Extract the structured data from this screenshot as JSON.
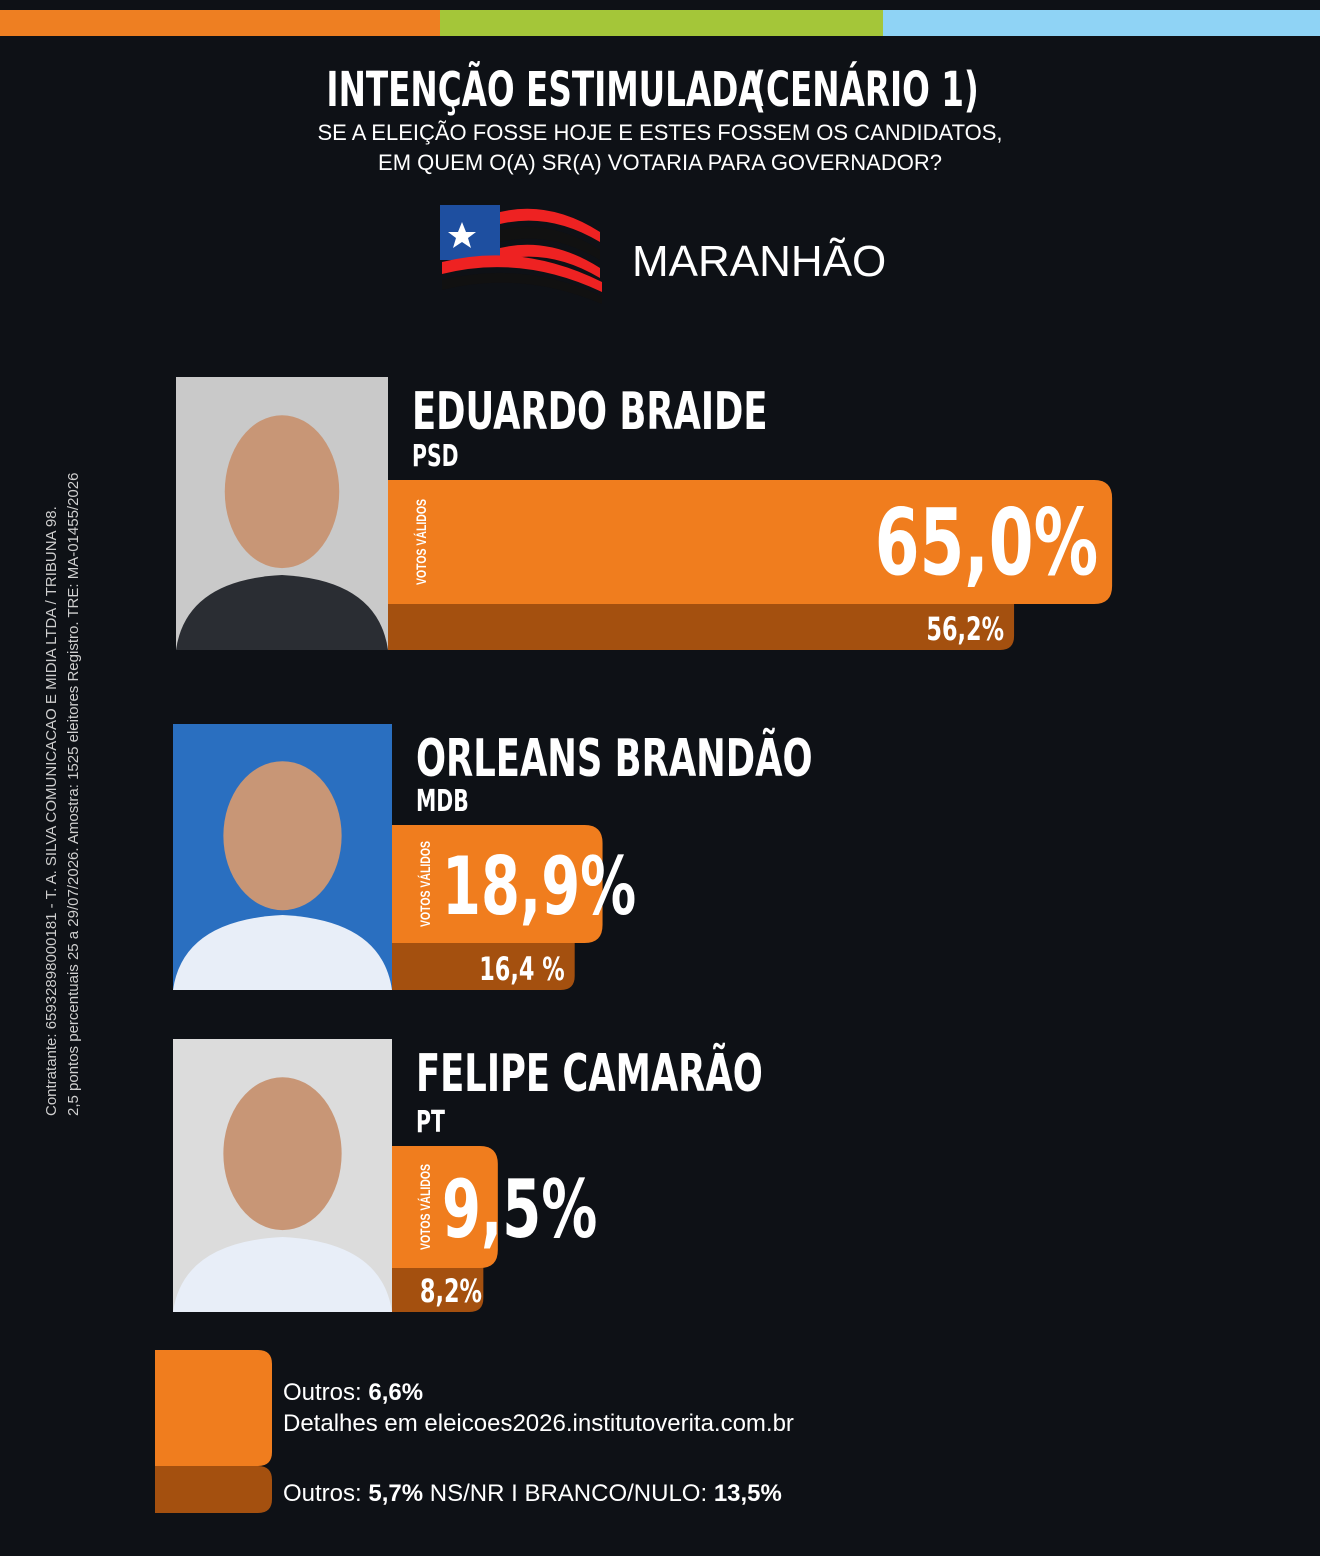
{
  "header": {
    "title": "INTENÇÃO ESTIMULADA",
    "scenario": "(CENÁRIO 1)",
    "question": [
      "SE A ELEIÇÃO FOSSE HOJE E ESTES FOSSEM OS CANDIDATOS,",
      "EM QUEM O(A) SR(A) VOTARIA PARA GOVERNADOR?"
    ],
    "state": "MARANHÃO"
  },
  "side_note": [
    "Contratante: 65932898000181 - T. A. SILVA COMUNICACAO E MIDIA LTDA / TRIBUNA 98.",
    "2,5 pontos percentuais 25 a 29/07/2026. Amostra: 1525 eleitores Registro. TRE: MA-01455/2026"
  ],
  "chart_data": {
    "type": "bar",
    "orientation": "horizontal",
    "categories": [
      "EDUARDO BRAIDE",
      "ORLEANS BRANDÃO",
      "FELIPE CAMARÃO"
    ],
    "parties": [
      "PSD",
      "MDB",
      "PT"
    ],
    "series": [
      {
        "name": "VOTOS VÁLIDOS",
        "color": "#f07d1e",
        "values": [
          65.0,
          18.9,
          9.5
        ],
        "value_labels": [
          "65,0%",
          "18,9%",
          "9,5%"
        ]
      },
      {
        "color": "#a4500f",
        "values": [
          56.2,
          16.4,
          8.2
        ],
        "value_labels": [
          "56,2%",
          "16,4 %",
          "8,2%"
        ]
      }
    ]
  },
  "footer": {
    "valid_others_label": "Outros:",
    "valid_others_value": "6,6%",
    "details": "Detalhes em eleicoes2026.institutoverita.com.br",
    "total_others_label": "Outros:",
    "total_others_value": "5,7%",
    "nsnr": "NS/NR",
    "separator": "I",
    "blank_label": "BRANCO/NULO:",
    "blank_value": "13,5%"
  }
}
